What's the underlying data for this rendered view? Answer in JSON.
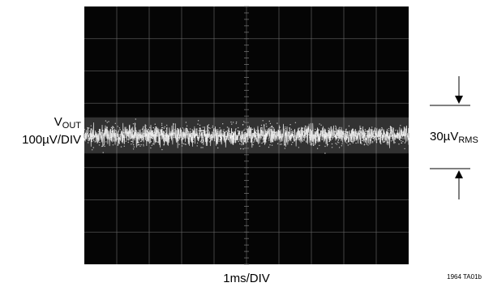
{
  "labels": {
    "vout_main": "V",
    "vout_sub": "OUT",
    "vertical_scale": "100µV/DIV",
    "measure_main": "30µV",
    "measure_sub": "RMS",
    "time_scale": "1ms/DIV",
    "figure_id": "1964 TA01b"
  },
  "chart_data": {
    "type": "line",
    "title": "",
    "xlabel": "1ms/DIV",
    "ylabel": "100µV/DIV",
    "grid": true,
    "divisions": {
      "x": 10,
      "y": 8
    },
    "series": [
      {
        "trace_center_div": 0,
        "band_span_div": [
          -0.7,
          0.7
        ],
        "rms_uV": 30
      }
    ],
    "annotations": [
      "30µVRMS"
    ],
    "colors": {
      "screen": "#050505",
      "grid": "#6e6e6e",
      "trace": "#ffffff",
      "page": "#ffffff"
    }
  }
}
